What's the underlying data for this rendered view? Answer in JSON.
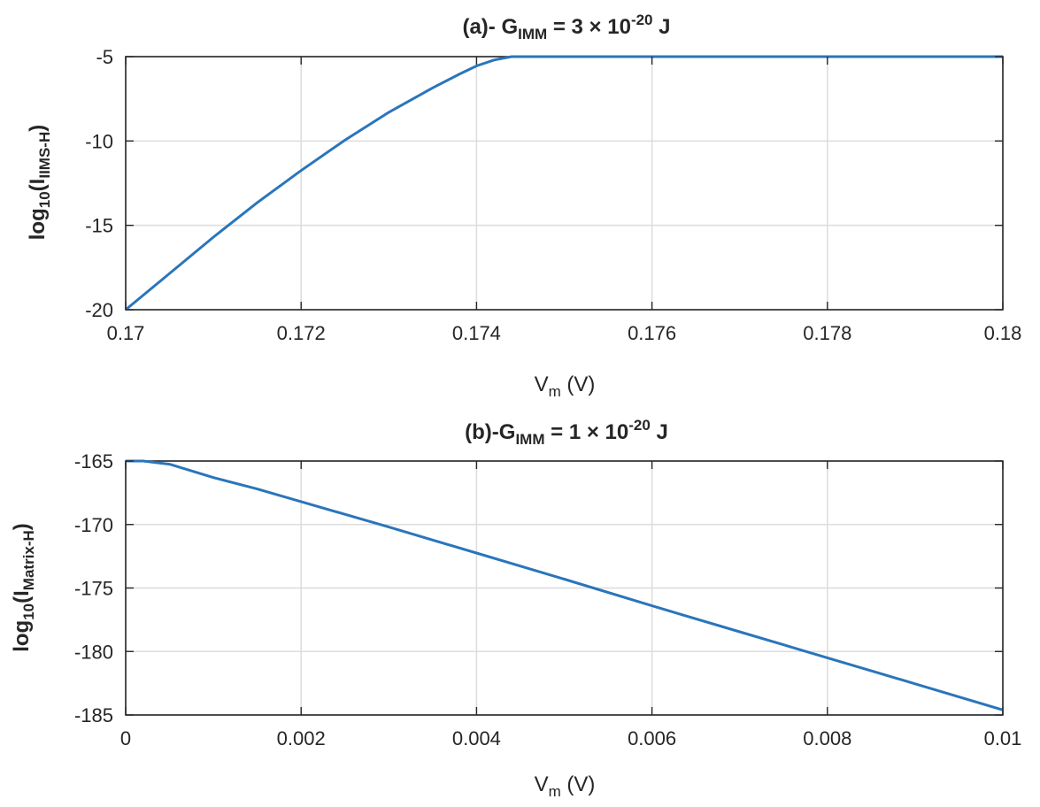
{
  "chart_data": [
    {
      "id": "a",
      "type": "line",
      "title": {
        "prefix": "(a)-  G",
        "sub": "IMM",
        "mid": "  =  3 ×  10",
        "sup": "-20",
        "suffix": "  J"
      },
      "xlabel": {
        "main": "V",
        "sub": "m",
        "rest": "  (V)"
      },
      "ylabel": {
        "main": "log",
        "sub1": "10",
        "mid": "(I",
        "sub2": "IIMS-H",
        "end": ")"
      },
      "xlim": [
        0.17,
        0.18
      ],
      "ylim": [
        -20,
        -5
      ],
      "xticks": [
        "0.17",
        "0.172",
        "0.174",
        "0.176",
        "0.178",
        "0.18"
      ],
      "xtick_values": [
        0.17,
        0.172,
        0.174,
        0.176,
        0.178,
        0.18
      ],
      "yticks": [
        "-5",
        "-10",
        "-15",
        "-20"
      ],
      "ytick_values": [
        -5,
        -10,
        -15,
        -20
      ],
      "grid": true,
      "series": [
        {
          "color": "#2a75bb",
          "x": [
            0.17,
            0.1705,
            0.171,
            0.1715,
            0.172,
            0.1725,
            0.173,
            0.1735,
            0.1738,
            0.174,
            0.1742,
            0.1744,
            0.175,
            0.176,
            0.177,
            0.178,
            0.179,
            0.18
          ],
          "y": [
            -20.0,
            -17.85,
            -15.7,
            -13.65,
            -11.75,
            -9.95,
            -8.3,
            -6.85,
            -6.05,
            -5.55,
            -5.2,
            -5.0,
            -5.0,
            -5.0,
            -5.0,
            -5.0,
            -5.0,
            -5.0
          ]
        }
      ]
    },
    {
      "id": "b",
      "type": "line",
      "title": {
        "prefix": "(b)-G",
        "sub": "IMM",
        "mid": "  =  1 ×  10",
        "sup": "-20",
        "suffix": "  J"
      },
      "xlabel": {
        "main": "V",
        "sub": "m",
        "rest": "  (V)"
      },
      "ylabel": {
        "main": "log",
        "sub1": "10",
        "mid": "(I",
        "sub2": "Matrix-H",
        "end": ")"
      },
      "xlim": [
        0,
        0.01
      ],
      "ylim": [
        -185,
        -165
      ],
      "xticks": [
        "0",
        "0.002",
        "0.004",
        "0.006",
        "0.008",
        "0.01"
      ],
      "xtick_values": [
        0,
        0.002,
        0.004,
        0.006,
        0.008,
        0.01
      ],
      "yticks": [
        "-165",
        "-170",
        "-175",
        "-180",
        "-185"
      ],
      "ytick_values": [
        -165,
        -170,
        -175,
        -180,
        -185
      ],
      "grid": true,
      "series": [
        {
          "color": "#2a75bb",
          "x": [
            0,
            0.0002,
            0.0005,
            0.001,
            0.0015,
            0.002,
            0.003,
            0.004,
            0.005,
            0.006,
            0.007,
            0.008,
            0.009,
            0.01
          ],
          "y": [
            -165.0,
            -165.0,
            -165.25,
            -166.3,
            -167.2,
            -168.2,
            -170.2,
            -172.25,
            -174.3,
            -176.4,
            -178.45,
            -180.5,
            -182.55,
            -184.6
          ]
        }
      ]
    }
  ]
}
